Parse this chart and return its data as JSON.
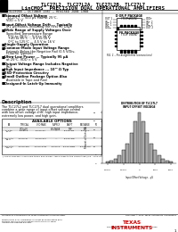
{
  "title_line1": "TLC27L2, TLC27L2A, TLC27L2B, TLC27L7",
  "title_line2": "LinCMOS™ PRECISION DUAL OPERATIONAL AMPLIFIERS",
  "subtitle": "SLOS066 – OCTOBER 1987 – REVISED JUNE 1988",
  "background_color": "#ffffff",
  "description_text": "The TLC27L2 and TLC27L7 dual operational amplifiers combine a wide range of input offset voltage control with low offset voltage drift, high input impedance, extremely low power, and high gain.",
  "hist_bar_color": "#aaaaaa",
  "hist_edge_color": "#000000",
  "hist_bin_centers": [
    -2000,
    -1750,
    -1500,
    -1250,
    -1000,
    -750,
    -500,
    -250,
    0,
    250,
    500,
    750,
    1000,
    1250,
    1500,
    1750,
    2000
  ],
  "hist_vals": [
    1,
    2,
    3,
    5,
    8,
    12,
    18,
    25,
    30,
    25,
    18,
    12,
    8,
    5,
    3,
    2,
    1
  ],
  "ti_logo_color": "#cc0000",
  "page_bg": "#ffffff"
}
